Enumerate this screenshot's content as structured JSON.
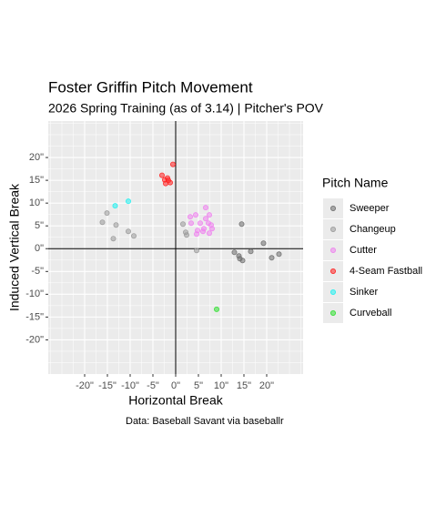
{
  "chart_data": {
    "type": "scatter",
    "title": "Foster Griffin Pitch Movement",
    "subtitle": "2026 Spring Training (as of 3.14) | Pitcher's POV",
    "x_label": "Horizontal Break",
    "y_label": "Induced Vertical Break",
    "caption": "Data: Baseball Savant via baseballr",
    "legend_title": "Pitch Name",
    "xlim": [
      -28,
      28
    ],
    "ylim": [
      -27.5,
      28
    ],
    "xticks": [
      {
        "value": -20,
        "label": "-20\""
      },
      {
        "value": -15,
        "label": "-15\""
      },
      {
        "value": -10,
        "label": "-10\""
      },
      {
        "value": -5,
        "label": "-5\""
      },
      {
        "value": 0,
        "label": "0\""
      },
      {
        "value": 5,
        "label": "5\""
      },
      {
        "value": 10,
        "label": "10\""
      },
      {
        "value": 15,
        "label": "15\""
      },
      {
        "value": 20,
        "label": "20\""
      }
    ],
    "yticks": [
      {
        "value": 20,
        "label": "20\""
      },
      {
        "value": 15,
        "label": "15\""
      },
      {
        "value": 10,
        "label": "10\""
      },
      {
        "value": 5,
        "label": "5\""
      },
      {
        "value": 0,
        "label": "0\""
      },
      {
        "value": -5,
        "label": "-5\""
      },
      {
        "value": -10,
        "label": "-10\""
      },
      {
        "value": -15,
        "label": "-15\""
      },
      {
        "value": -20,
        "label": "-20\""
      }
    ],
    "grid": true,
    "zero_lines": true,
    "legend": "right",
    "series": [
      {
        "name": "Sweeper",
        "color": "#6e6e6e",
        "x": [
          14.5,
          12.9,
          13.9,
          14.1,
          14.7,
          16.5,
          19.3,
          21.1,
          22.7
        ],
        "values": [
          5.4,
          -0.8,
          -1.6,
          -2.2,
          -2.6,
          -0.6,
          1.2,
          -2.0,
          -1.2
        ]
      },
      {
        "name": "Changeup",
        "color": "#9a9a9a",
        "x": [
          -16.1,
          -15.1,
          -13.7,
          -13.1,
          -10.4,
          -9.2,
          1.6,
          2.2,
          2.4,
          4.6
        ],
        "values": [
          5.8,
          7.8,
          2.2,
          5.2,
          3.8,
          2.8,
          5.4,
          3.6,
          3.0,
          -0.4
        ]
      },
      {
        "name": "Cutter",
        "color": "#ee82ee",
        "x": [
          3.2,
          4.4,
          3.4,
          5.4,
          4.8,
          6.0,
          6.6,
          6.6,
          7.4,
          7.2,
          7.8,
          8.0,
          6.2,
          7.4,
          4.6
        ],
        "values": [
          7.0,
          7.4,
          5.6,
          5.6,
          4.0,
          3.8,
          6.6,
          9.0,
          7.4,
          5.6,
          5.2,
          4.4,
          4.4,
          3.4,
          3.2
        ]
      },
      {
        "name": "4-Seam Fastball",
        "color": "#ff2020",
        "x": [
          -3.0,
          -2.4,
          -1.8,
          -2.2,
          -1.2,
          -1.6,
          -0.6
        ],
        "values": [
          16.1,
          15.1,
          15.5,
          14.3,
          14.5,
          15.0,
          18.5
        ]
      },
      {
        "name": "Sinker",
        "color": "#20f0f0",
        "x": [
          -13.3,
          -10.4
        ],
        "values": [
          9.4,
          10.4
        ]
      },
      {
        "name": "Curveball",
        "color": "#30e030",
        "x": [
          9.0
        ],
        "values": [
          -13.3
        ]
      }
    ]
  }
}
